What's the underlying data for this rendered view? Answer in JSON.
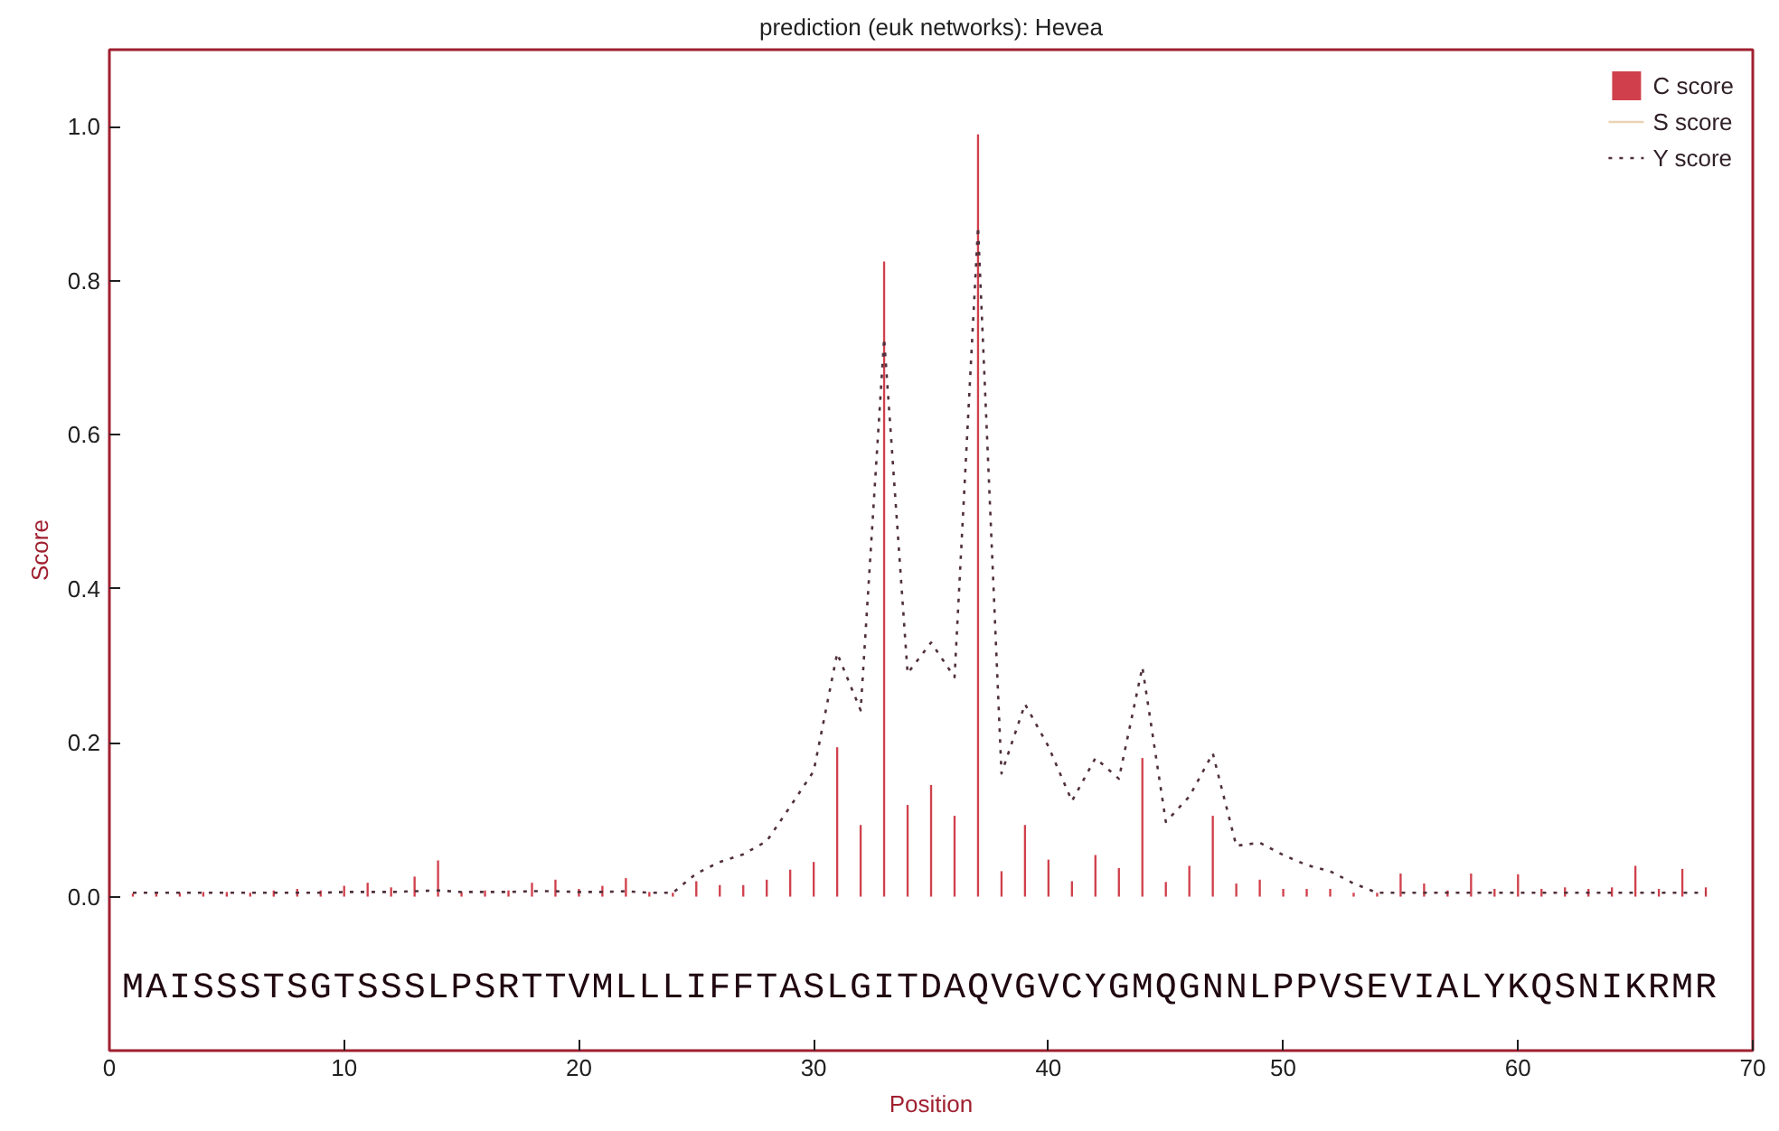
{
  "chart_data": {
    "type": "bar",
    "title": "prediction (euk networks): Hevea",
    "xlabel": "Position",
    "ylabel": "Score",
    "x": [
      1,
      2,
      3,
      4,
      5,
      6,
      7,
      8,
      9,
      10,
      11,
      12,
      13,
      14,
      15,
      16,
      17,
      18,
      19,
      20,
      21,
      22,
      23,
      24,
      25,
      26,
      27,
      28,
      29,
      30,
      31,
      32,
      33,
      34,
      35,
      36,
      37,
      38,
      39,
      40,
      41,
      42,
      43,
      44,
      45,
      46,
      47,
      48,
      49,
      50,
      51,
      52,
      53,
      54,
      55,
      56,
      57,
      58,
      59,
      60,
      61,
      62,
      63,
      64,
      65,
      66,
      67,
      68
    ],
    "series": [
      {
        "name": "C score",
        "color": "#d0404c",
        "values": [
          0.004,
          0.004,
          0.005,
          0.006,
          0.006,
          0.005,
          0.008,
          0.01,
          0.008,
          0.014,
          0.018,
          0.012,
          0.026,
          0.047,
          0.006,
          0.008,
          0.008,
          0.018,
          0.022,
          0.01,
          0.014,
          0.024,
          0.006,
          0.005,
          0.02,
          0.015,
          0.015,
          0.022,
          0.035,
          0.045,
          0.194,
          0.093,
          0.825,
          0.119,
          0.145,
          0.105,
          0.99,
          0.033,
          0.093,
          0.048,
          0.02,
          0.054,
          0.037,
          0.18,
          0.019,
          0.04,
          0.105,
          0.017,
          0.022,
          0.01,
          0.01,
          0.01,
          0.005,
          0.005,
          0.03,
          0.017,
          0.008,
          0.03,
          0.01,
          0.029,
          0.01,
          0.012,
          0.01,
          0.012,
          0.04,
          0.01,
          0.036,
          0.012
        ]
      },
      {
        "name": "S score",
        "type": "line",
        "color": "#ead2b4",
        "values": [
          null,
          null,
          null,
          null,
          null,
          null,
          null,
          null,
          null,
          null,
          null,
          null,
          null,
          null,
          null,
          null,
          null,
          null,
          null,
          null,
          null,
          null,
          null,
          null,
          null,
          null,
          null,
          null,
          null,
          null,
          null,
          null,
          null,
          null,
          null,
          null,
          null,
          null,
          null,
          null,
          null,
          null,
          null,
          null,
          null,
          null,
          null,
          null,
          null,
          null,
          null,
          null,
          null,
          null,
          null,
          null,
          null,
          null,
          null,
          null,
          null,
          null,
          null,
          null,
          null,
          null,
          null,
          null
        ]
      },
      {
        "name": "Y score",
        "type": "line",
        "line_style": "dotted",
        "color": "#50303c",
        "values": [
          0.005,
          0.005,
          0.005,
          0.005,
          0.005,
          0.005,
          0.005,
          0.005,
          0.005,
          0.006,
          0.006,
          0.006,
          0.007,
          0.008,
          0.006,
          0.006,
          0.006,
          0.007,
          0.007,
          0.006,
          0.006,
          0.007,
          0.005,
          0.005,
          0.03,
          0.045,
          0.055,
          0.072,
          0.117,
          0.163,
          0.316,
          0.242,
          0.725,
          0.29,
          0.33,
          0.285,
          0.87,
          0.16,
          0.25,
          0.195,
          0.124,
          0.18,
          0.153,
          0.298,
          0.097,
          0.13,
          0.186,
          0.066,
          0.07,
          0.054,
          0.041,
          0.033,
          0.017,
          0.005,
          0.005,
          0.005,
          0.005,
          0.005,
          0.005,
          0.005,
          0.005,
          0.005,
          0.005,
          0.005,
          0.005,
          0.005,
          0.005,
          0.005
        ]
      }
    ],
    "xlim": [
      0,
      70
    ],
    "xticks": [
      0,
      10,
      20,
      30,
      40,
      50,
      60,
      70
    ],
    "ylim": [
      -0.2,
      1.1
    ],
    "yticks": [
      {
        "value": 0,
        "label": "0.0"
      },
      {
        "value": 0.2,
        "label": "0.2"
      },
      {
        "value": 0.4,
        "label": "0.4"
      },
      {
        "value": 0.6,
        "label": "0.6"
      },
      {
        "value": 0.8,
        "label": "0.8"
      },
      {
        "value": 1.0,
        "label": "1.0"
      }
    ],
    "grid": false,
    "legend": "top right",
    "annotations": [
      "MAISSSTSGTSSSLPSRTTVMLLLIFFTASLGITDAQVGVCYGMQGNNLPPVSEVIALYKQSNIKRMR"
    ]
  }
}
